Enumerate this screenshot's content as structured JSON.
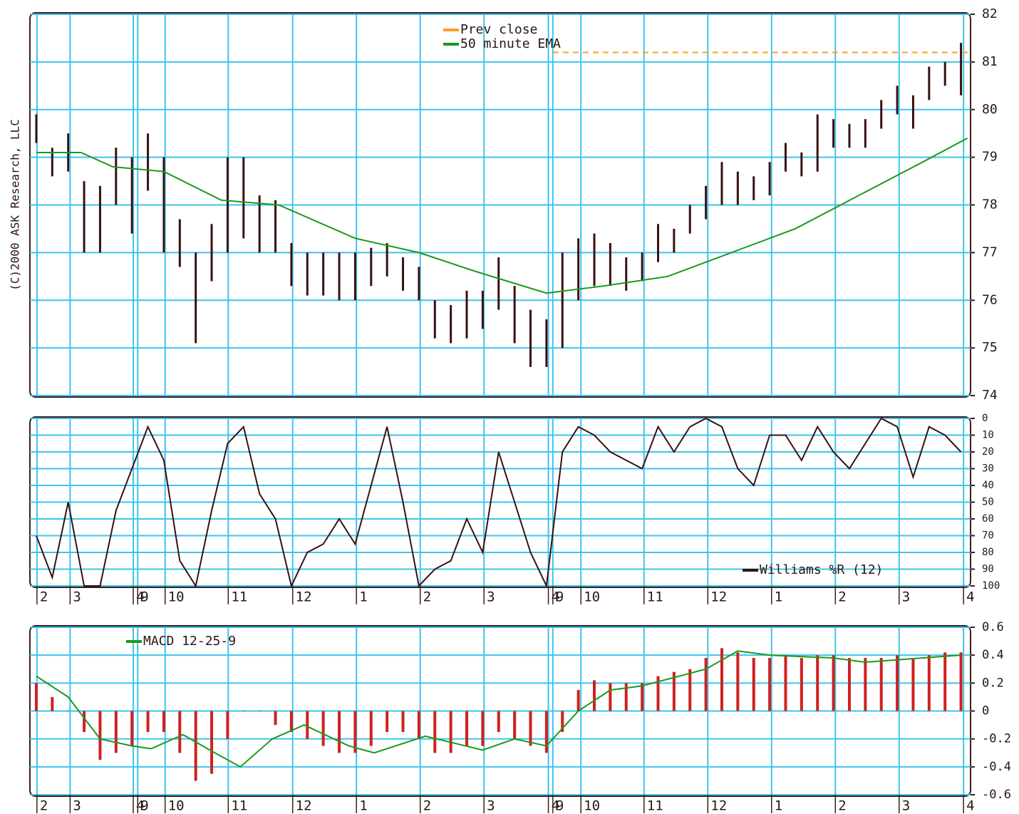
{
  "chart_data": [
    {
      "type": "stock",
      "ylabel": "(C)2000 ASK Research, LLC",
      "legend": "top-center",
      "grid": true,
      "xlim": [
        0,
        14.75
      ],
      "ylim": [
        74,
        82
      ],
      "yticks": [
        74,
        75,
        76,
        77,
        78,
        79,
        80,
        81,
        82
      ],
      "xticks": [
        0.11,
        0.63,
        1.62,
        1.69,
        2.12,
        3.11,
        4.12,
        5.12,
        6.12,
        7.12,
        8.13,
        8.2,
        8.64,
        9.63,
        10.63,
        11.63,
        12.63,
        13.63,
        14.64
      ],
      "color": "#3a1010",
      "x": [
        0.1,
        0.35,
        0.6,
        0.85,
        1.1,
        1.35,
        1.6,
        1.85,
        2.1,
        2.35,
        2.6,
        2.85,
        3.1,
        3.35,
        3.6,
        3.85,
        4.1,
        4.35,
        4.6,
        4.85,
        5.1,
        5.35,
        5.6,
        5.85,
        6.1,
        6.35,
        6.6,
        6.85,
        7.1,
        7.35,
        7.6,
        7.85,
        8.1,
        8.35,
        8.6,
        8.85,
        9.1,
        9.35,
        9.6,
        9.85,
        10.1,
        10.35,
        10.6,
        10.85,
        11.1,
        11.35,
        11.6,
        11.85,
        12.1,
        12.35,
        12.6,
        12.85,
        13.1,
        13.35,
        13.6,
        13.85,
        14.1,
        14.35,
        14.6
      ],
      "high": [
        79.9,
        79.2,
        79.5,
        78.5,
        78.4,
        79.2,
        79,
        79.5,
        79,
        77.7,
        77,
        77.6,
        79,
        79,
        78.2,
        78.1,
        77.2,
        77,
        77,
        77,
        77,
        77.1,
        77.2,
        76.9,
        76.7,
        76,
        75.9,
        76.2,
        76.2,
        76.9,
        76.3,
        75.8,
        75.6,
        77,
        77.3,
        77.4,
        77.2,
        76.9,
        77,
        77.6,
        77.5,
        78,
        78.4,
        78.9,
        78.7,
        78.6,
        78.9,
        79.3,
        79.1,
        79.9,
        79.8,
        79.7,
        79.8,
        80.2,
        80.5,
        80.3,
        80.9,
        81,
        81.4
      ],
      "low": [
        79.3,
        78.6,
        78.7,
        77,
        77,
        78,
        77.4,
        78.3,
        77,
        76.7,
        75.1,
        76.4,
        77,
        77.3,
        77,
        77,
        76.3,
        76.1,
        76.1,
        76,
        76,
        76.3,
        76.5,
        76.2,
        76,
        75.2,
        75.1,
        75.2,
        75.4,
        75.8,
        75.1,
        74.6,
        74.6,
        75,
        76,
        76.3,
        76.3,
        76.2,
        76.4,
        76.8,
        77,
        77.4,
        77.7,
        78,
        78,
        78.1,
        78.2,
        78.7,
        78.6,
        78.7,
        79.2,
        79.2,
        79.2,
        79.6,
        79.9,
        79.6,
        80.2,
        80.5,
        80.3
      ],
      "series": [
        {
          "name": "Prev close",
          "color": "#ff9f1a",
          "style": "dashed",
          "type": "line",
          "x": [
            8.2,
            14.75
          ],
          "values": [
            81.2,
            81.2
          ]
        },
        {
          "name": "50 minute EMA",
          "color": "#1a9a1a",
          "type": "line",
          "x": [
            0.1,
            0.8,
            1.3,
            2.1,
            3.0,
            3.9,
            5.1,
            6.1,
            7.0,
            8.1,
            9.0,
            10.0,
            11.0,
            12.0,
            13.0,
            14.0,
            14.7
          ],
          "values": [
            79.1,
            79.1,
            78.8,
            78.7,
            78.1,
            78.0,
            77.3,
            77.0,
            76.6,
            76.15,
            76.3,
            76.5,
            77.0,
            77.5,
            78.2,
            78.9,
            79.4
          ]
        }
      ]
    },
    {
      "type": "line",
      "legend": "bottom-right",
      "grid": true,
      "xlim": [
        0,
        14.75
      ],
      "ylim": [
        100,
        0
      ],
      "yticks": [
        0,
        10,
        20,
        30,
        40,
        50,
        60,
        70,
        80,
        90,
        100
      ],
      "xticks": [
        {
          "value": 0.11,
          "label": "2"
        },
        {
          "value": 0.63,
          "label": "3"
        },
        {
          "value": 1.62,
          "label": "4"
        },
        {
          "value": 1.69,
          "label": "9"
        },
        {
          "value": 2.12,
          "label": "10"
        },
        {
          "value": 3.11,
          "label": "11"
        },
        {
          "value": 4.12,
          "label": "12"
        },
        {
          "value": 5.12,
          "label": "1"
        },
        {
          "value": 6.12,
          "label": "2"
        },
        {
          "value": 7.12,
          "label": "3"
        },
        {
          "value": 8.13,
          "label": "4"
        },
        {
          "value": 8.2,
          "label": "9"
        },
        {
          "value": 8.64,
          "label": "10"
        },
        {
          "value": 9.63,
          "label": "11"
        },
        {
          "value": 10.63,
          "label": "12"
        },
        {
          "value": 11.63,
          "label": "1"
        },
        {
          "value": 12.63,
          "label": "2"
        },
        {
          "value": 13.63,
          "label": "3"
        },
        {
          "value": 14.64,
          "label": "4"
        }
      ],
      "x": [
        0.1,
        0.35,
        0.6,
        0.85,
        1.1,
        1.35,
        1.6,
        1.85,
        2.1,
        2.35,
        2.6,
        2.85,
        3.1,
        3.35,
        3.6,
        3.85,
        4.1,
        4.35,
        4.6,
        4.85,
        5.1,
        5.35,
        5.6,
        5.85,
        6.1,
        6.35,
        6.6,
        6.85,
        7.1,
        7.35,
        7.6,
        7.85,
        8.1,
        8.35,
        8.6,
        8.85,
        9.1,
        9.35,
        9.6,
        9.85,
        10.1,
        10.35,
        10.6,
        10.85,
        11.1,
        11.35,
        11.6,
        11.85,
        12.1,
        12.35,
        12.6,
        12.85,
        13.1,
        13.35,
        13.6,
        13.85,
        14.1,
        14.35,
        14.6
      ],
      "series": [
        {
          "name": "Williams %R (12)",
          "color": "#3a1010",
          "type": "line",
          "values": [
            70,
            95,
            50,
            100,
            100,
            55,
            30,
            5,
            25,
            85,
            100,
            55,
            15,
            5,
            45,
            60,
            100,
            80,
            75,
            60,
            75,
            40,
            5,
            50,
            100,
            90,
            85,
            60,
            80,
            20,
            50,
            80,
            100,
            20,
            5,
            10,
            20,
            25,
            30,
            5,
            20,
            5,
            0,
            5,
            30,
            40,
            10,
            10,
            25,
            5,
            20,
            30,
            15,
            0,
            5,
            35,
            5,
            10,
            20
          ]
        }
      ]
    },
    {
      "type": "bar",
      "legend": "top-left",
      "grid": true,
      "xlim": [
        0,
        14.75
      ],
      "ylim": [
        -0.6,
        0.6
      ],
      "yticks": [
        0.6,
        0.4,
        0.2,
        0,
        -0.2,
        -0.4,
        -0.6
      ],
      "xticks": [
        {
          "value": 0.11,
          "label": "2"
        },
        {
          "value": 0.63,
          "label": "3"
        },
        {
          "value": 1.62,
          "label": "4"
        },
        {
          "value": 1.69,
          "label": "9"
        },
        {
          "value": 2.12,
          "label": "10"
        },
        {
          "value": 3.11,
          "label": "11"
        },
        {
          "value": 4.12,
          "label": "12"
        },
        {
          "value": 5.12,
          "label": "1"
        },
        {
          "value": 6.12,
          "label": "2"
        },
        {
          "value": 7.12,
          "label": "3"
        },
        {
          "value": 8.13,
          "label": "4"
        },
        {
          "value": 8.2,
          "label": "9"
        },
        {
          "value": 8.64,
          "label": "10"
        },
        {
          "value": 9.63,
          "label": "11"
        },
        {
          "value": 10.63,
          "label": "12"
        },
        {
          "value": 11.63,
          "label": "1"
        },
        {
          "value": 12.63,
          "label": "2"
        },
        {
          "value": 13.63,
          "label": "3"
        },
        {
          "value": 14.64,
          "label": "4"
        }
      ],
      "x": [
        0.1,
        0.35,
        0.6,
        0.85,
        1.1,
        1.35,
        1.6,
        1.85,
        2.1,
        2.35,
        2.6,
        2.85,
        3.1,
        3.35,
        3.6,
        3.85,
        4.1,
        4.35,
        4.6,
        4.85,
        5.1,
        5.35,
        5.6,
        5.85,
        6.1,
        6.35,
        6.6,
        6.85,
        7.1,
        7.35,
        7.6,
        7.85,
        8.1,
        8.35,
        8.6,
        8.85,
        9.1,
        9.35,
        9.6,
        9.85,
        10.1,
        10.35,
        10.6,
        10.85,
        11.1,
        11.35,
        11.6,
        11.85,
        12.1,
        12.35,
        12.6,
        12.85,
        13.1,
        13.35,
        13.6,
        13.85,
        14.1,
        14.35,
        14.6
      ],
      "series": [
        {
          "color": "#d02020",
          "type": "bar",
          "values": [
            0.2,
            0.1,
            0,
            -0.15,
            -0.35,
            -0.3,
            -0.25,
            -0.15,
            -0.15,
            -0.3,
            -0.5,
            -0.45,
            -0.2,
            0,
            0,
            -0.1,
            -0.15,
            -0.2,
            -0.25,
            -0.3,
            -0.3,
            -0.25,
            -0.15,
            -0.15,
            -0.2,
            -0.3,
            -0.3,
            -0.25,
            -0.25,
            -0.15,
            -0.2,
            -0.25,
            -0.3,
            -0.15,
            0.15,
            0.22,
            0.2,
            0.2,
            0.2,
            0.25,
            0.28,
            0.3,
            0.38,
            0.45,
            0.42,
            0.38,
            0.38,
            0.4,
            0.38,
            0.4,
            0.4,
            0.38,
            0.38,
            0.38,
            0.4,
            0.38,
            0.4,
            0.42,
            0.42
          ]
        },
        {
          "name": "MACD 12-25-9",
          "color": "#1a9a1a",
          "type": "line",
          "x": [
            0.1,
            0.6,
            1.1,
            1.6,
            1.9,
            2.4,
            2.9,
            3.3,
            3.8,
            4.3,
            5.0,
            5.4,
            6.2,
            7.1,
            7.6,
            8.1,
            8.6,
            9.1,
            9.6,
            10.6,
            11.1,
            11.6,
            12.6,
            13.1,
            14.6
          ],
          "values": [
            0.25,
            0.1,
            -0.2,
            -0.25,
            -0.27,
            -0.17,
            -0.3,
            -0.4,
            -0.2,
            -0.1,
            -0.25,
            -0.3,
            -0.18,
            -0.28,
            -0.2,
            -0.25,
            0,
            0.15,
            0.18,
            0.3,
            0.43,
            0.4,
            0.38,
            0.35,
            0.4
          ]
        }
      ]
    }
  ]
}
